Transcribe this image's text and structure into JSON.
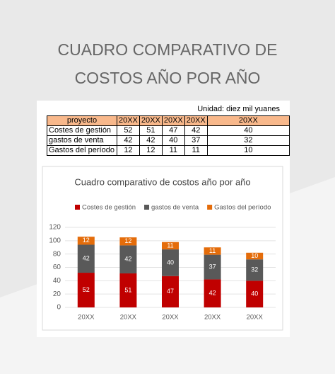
{
  "header": {
    "title": [
      "CUADRO COMPARATIVO DE",
      "COSTOS AÑO POR AÑO"
    ]
  },
  "table": {
    "unit": "Unidad: diez mil yuanes",
    "columns": [
      "proyecto",
      "20XX",
      "20XX",
      "20XX",
      "20XX",
      "20XX"
    ],
    "rows": [
      [
        "Costes de gestión",
        52,
        51,
        47,
        42,
        40
      ],
      [
        "gastos de venta",
        42,
        42,
        40,
        37,
        32
      ],
      [
        "Gastos del período",
        12,
        12,
        11,
        11,
        10
      ]
    ]
  },
  "chart_data": {
    "type": "bar",
    "stacked": true,
    "title": "Cuadro comparativo de costos año por año",
    "categories": [
      "20XX",
      "20XX",
      "20XX",
      "20XX",
      "20XX"
    ],
    "series": [
      {
        "name": "Costes de gestión",
        "color": "#c00000",
        "values": [
          52,
          51,
          47,
          42,
          40
        ]
      },
      {
        "name": "gastos de venta",
        "color": "#595959",
        "values": [
          42,
          42,
          40,
          37,
          32
        ]
      },
      {
        "name": "Gastos del período",
        "color": "#e46c0a",
        "values": [
          12,
          12,
          11,
          11,
          10
        ]
      }
    ],
    "ylim": [
      0,
      120
    ],
    "yticks": [
      0,
      20,
      40,
      60,
      80,
      100,
      120
    ],
    "grid": true,
    "legend": "top"
  }
}
